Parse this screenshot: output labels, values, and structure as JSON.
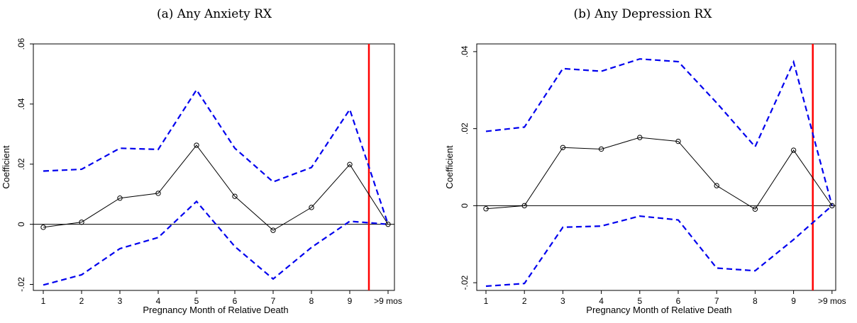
{
  "colors": {
    "ci": "#0000ee",
    "estimate": "#000000",
    "marker": "#ff0000",
    "zero": "#000000"
  },
  "chart_data": [
    {
      "type": "line",
      "title": "(a) Any Anxiety RX",
      "xlabel": "Pregnancy Month of Relative Death",
      "ylabel": "Coefficient",
      "categories": [
        "1",
        "2",
        "3",
        "4",
        "5",
        "6",
        "7",
        "8",
        "9",
        ">9 mos"
      ],
      "ylim": [
        -0.022,
        0.06
      ],
      "yticks": [
        -0.02,
        0,
        0.02,
        0.04,
        0.06
      ],
      "ytick_labels": [
        "-.02",
        "0",
        ".02",
        ".04",
        ".06"
      ],
      "vertical_line_between": [
        "9",
        ">9 mos"
      ],
      "series": [
        {
          "values": [
            -0.001,
            0.0007,
            0.0087,
            0.0103,
            0.0263,
            0.0093,
            -0.002,
            0.0056,
            0.0199,
            0.0
          ]
        },
        {
          "values": [
            0.0177,
            0.0183,
            0.0253,
            0.0249,
            0.0447,
            0.0253,
            0.0141,
            0.0189,
            0.0382,
            0.0
          ]
        },
        {
          "values": [
            -0.0202,
            -0.0168,
            -0.0081,
            -0.0044,
            0.0076,
            -0.0074,
            -0.0182,
            -0.0077,
            0.001,
            0.0
          ]
        }
      ],
      "grid": false,
      "legend": "none"
    },
    {
      "type": "line",
      "title": "(b) Any Depression RX",
      "xlabel": "Pregnancy Month of Relative Death",
      "ylabel": "Coefficient",
      "categories": [
        "1",
        "2",
        "3",
        "4",
        "5",
        "6",
        "7",
        "8",
        "9",
        ">9 mos"
      ],
      "ylim": [
        -0.022,
        0.042
      ],
      "yticks": [
        -0.02,
        0,
        0.02,
        0.04
      ],
      "ytick_labels": [
        "-.02",
        "0",
        ".02",
        ".04"
      ],
      "vertical_line_between": [
        "9",
        ">9 mos"
      ],
      "series": [
        {
          "values": [
            -0.0008,
            0.0,
            0.0151,
            0.0147,
            0.0177,
            0.0167,
            0.0052,
            -0.0009,
            0.0144,
            0.0
          ]
        },
        {
          "values": [
            0.0193,
            0.0204,
            0.0356,
            0.0349,
            0.0381,
            0.0374,
            0.0267,
            0.0153,
            0.0373,
            0.0
          ]
        },
        {
          "values": [
            -0.0209,
            -0.0202,
            -0.0056,
            -0.0053,
            -0.0027,
            -0.0037,
            -0.0162,
            -0.0169,
            -0.0088,
            0.0
          ]
        }
      ],
      "grid": false,
      "legend": "none"
    }
  ]
}
